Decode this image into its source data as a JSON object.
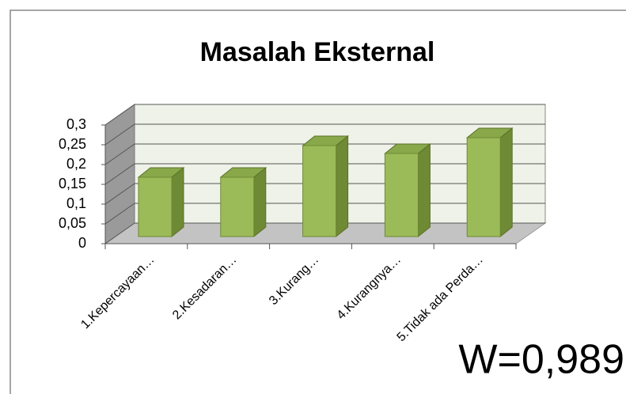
{
  "chart_data": {
    "type": "bar3d",
    "title": "Masalah Eksternal",
    "categories": [
      "1.Kepercayaan…",
      "2.Kesadaran…",
      "3.Kurang…",
      "4.Kurangnya…",
      "5.Tidak ada Perda…"
    ],
    "values": [
      0.15,
      0.15,
      0.23,
      0.21,
      0.25
    ],
    "color": "#9bbb59",
    "ylim": [
      0,
      0.3
    ],
    "yticks": [
      0,
      {
        "value": 0.05,
        "label": "0,05"
      },
      {
        "value": 0.1,
        "label": "0,1"
      },
      {
        "value": 0.15,
        "label": "0,15"
      },
      {
        "value": 0.2,
        "label": "0,2"
      },
      {
        "value": 0.25,
        "label": "0,25"
      },
      {
        "value": 0.3,
        "label": "0,3"
      }
    ],
    "grid": true,
    "annotation": "W=0,989"
  }
}
